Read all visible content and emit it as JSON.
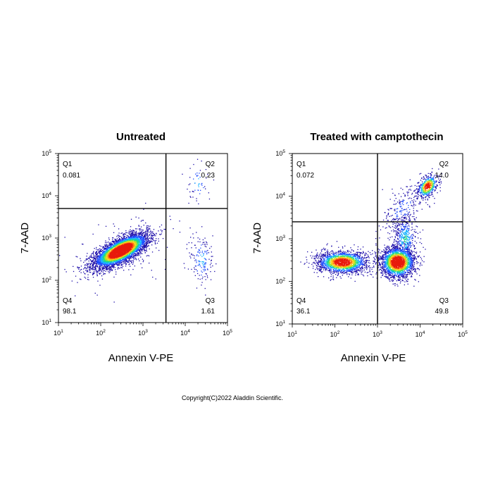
{
  "chart_data": [
    {
      "type": "scatter",
      "subtype": "flow-cytometry-density-dot-plot",
      "title": "Untreated",
      "xlabel": "Annexin V-PE",
      "ylabel": "7-AAD",
      "x_scale": "log",
      "y_scale": "log",
      "xlim": [
        10,
        100000
      ],
      "ylim": [
        10,
        100000
      ],
      "x_ticks": [
        {
          "base": "10",
          "exp": "1"
        },
        {
          "base": "10",
          "exp": "2"
        },
        {
          "base": "10",
          "exp": "3"
        },
        {
          "base": "10",
          "exp": "4"
        },
        {
          "base": "10",
          "exp": "5"
        }
      ],
      "y_ticks": [
        {
          "base": "10",
          "exp": "1"
        },
        {
          "base": "10",
          "exp": "2"
        },
        {
          "base": "10",
          "exp": "3"
        },
        {
          "base": "10",
          "exp": "4"
        },
        {
          "base": "10",
          "exp": "5"
        }
      ],
      "gate_x": 3500,
      "gate_y": 5000,
      "quadrants": [
        {
          "id": "Q1",
          "value": "0.081",
          "position": "top-left"
        },
        {
          "id": "Q2",
          "value": "0.23",
          "position": "top-right"
        },
        {
          "id": "Q3",
          "value": "1.61",
          "position": "bottom-right"
        },
        {
          "id": "Q4",
          "value": "98.1",
          "position": "bottom-left"
        }
      ],
      "populations": [
        {
          "center_x": 300,
          "center_y": 500,
          "spread_log_x": 0.32,
          "spread_log_y": 0.2,
          "correlation": 0.7,
          "share": 0.94,
          "density_weight": 1.6
        },
        {
          "center_x": 25000,
          "center_y": 300,
          "spread_log_x": 0.15,
          "spread_log_y": 0.35,
          "correlation": 0,
          "share": 0.03,
          "density_weight": 0.3
        },
        {
          "center_x": 20000,
          "center_y": 20000,
          "spread_log_x": 0.15,
          "spread_log_y": 0.25,
          "correlation": 0,
          "share": 0.01,
          "density_weight": 0.3
        },
        {
          "center_x": 300,
          "center_y": 500,
          "spread_log_x": 0.6,
          "spread_log_y": 0.5,
          "correlation": 0.3,
          "share": 0.02,
          "density_weight": 0.2
        }
      ]
    },
    {
      "type": "scatter",
      "subtype": "flow-cytometry-density-dot-plot",
      "title": "Treated with camptothecin",
      "xlabel": "Annexin V-PE",
      "ylabel": "7-AAD",
      "x_scale": "log",
      "y_scale": "log",
      "xlim": [
        10,
        100000
      ],
      "ylim": [
        10,
        100000
      ],
      "x_ticks": [
        {
          "base": "10",
          "exp": "1"
        },
        {
          "base": "10",
          "exp": "2"
        },
        {
          "base": "10",
          "exp": "3"
        },
        {
          "base": "10",
          "exp": "4"
        },
        {
          "base": "10",
          "exp": "5"
        }
      ],
      "y_ticks": [
        {
          "base": "10",
          "exp": "1"
        },
        {
          "base": "10",
          "exp": "2"
        },
        {
          "base": "10",
          "exp": "3"
        },
        {
          "base": "10",
          "exp": "4"
        },
        {
          "base": "10",
          "exp": "5"
        }
      ],
      "gate_x": 1000,
      "gate_y": 2500,
      "quadrants": [
        {
          "id": "Q1",
          "value": "0.072",
          "position": "top-left"
        },
        {
          "id": "Q2",
          "value": "14.0",
          "position": "top-right"
        },
        {
          "id": "Q3",
          "value": "49.8",
          "position": "bottom-right"
        },
        {
          "id": "Q4",
          "value": "36.1",
          "position": "bottom-left"
        }
      ],
      "populations": [
        {
          "center_x": 150,
          "center_y": 280,
          "spread_log_x": 0.3,
          "spread_log_y": 0.13,
          "correlation": 0,
          "share": 0.36,
          "density_weight": 1.2
        },
        {
          "center_x": 3000,
          "center_y": 280,
          "spread_log_x": 0.2,
          "spread_log_y": 0.18,
          "correlation": 0,
          "share": 0.42,
          "density_weight": 1.4
        },
        {
          "center_x": 4500,
          "center_y": 1000,
          "spread_log_x": 0.14,
          "spread_log_y": 0.3,
          "correlation": 0,
          "share": 0.08,
          "density_weight": 0.4
        },
        {
          "center_x": 15000,
          "center_y": 17000,
          "spread_log_x": 0.12,
          "spread_log_y": 0.14,
          "correlation": 0.4,
          "share": 0.1,
          "density_weight": 1.1
        },
        {
          "center_x": 4000,
          "center_y": 5000,
          "spread_log_x": 0.25,
          "spread_log_y": 0.3,
          "correlation": 0.5,
          "share": 0.04,
          "density_weight": 0.2
        }
      ]
    }
  ],
  "density_colors": [
    "#1a0aa8",
    "#1f4dff",
    "#18b2ff",
    "#1fd98a",
    "#a6e22a",
    "#ffd21f",
    "#ff7a12",
    "#e81a0c"
  ],
  "gate_color": "#000000",
  "copyright": "Copyright(C)2022 Aladdin Scientific."
}
